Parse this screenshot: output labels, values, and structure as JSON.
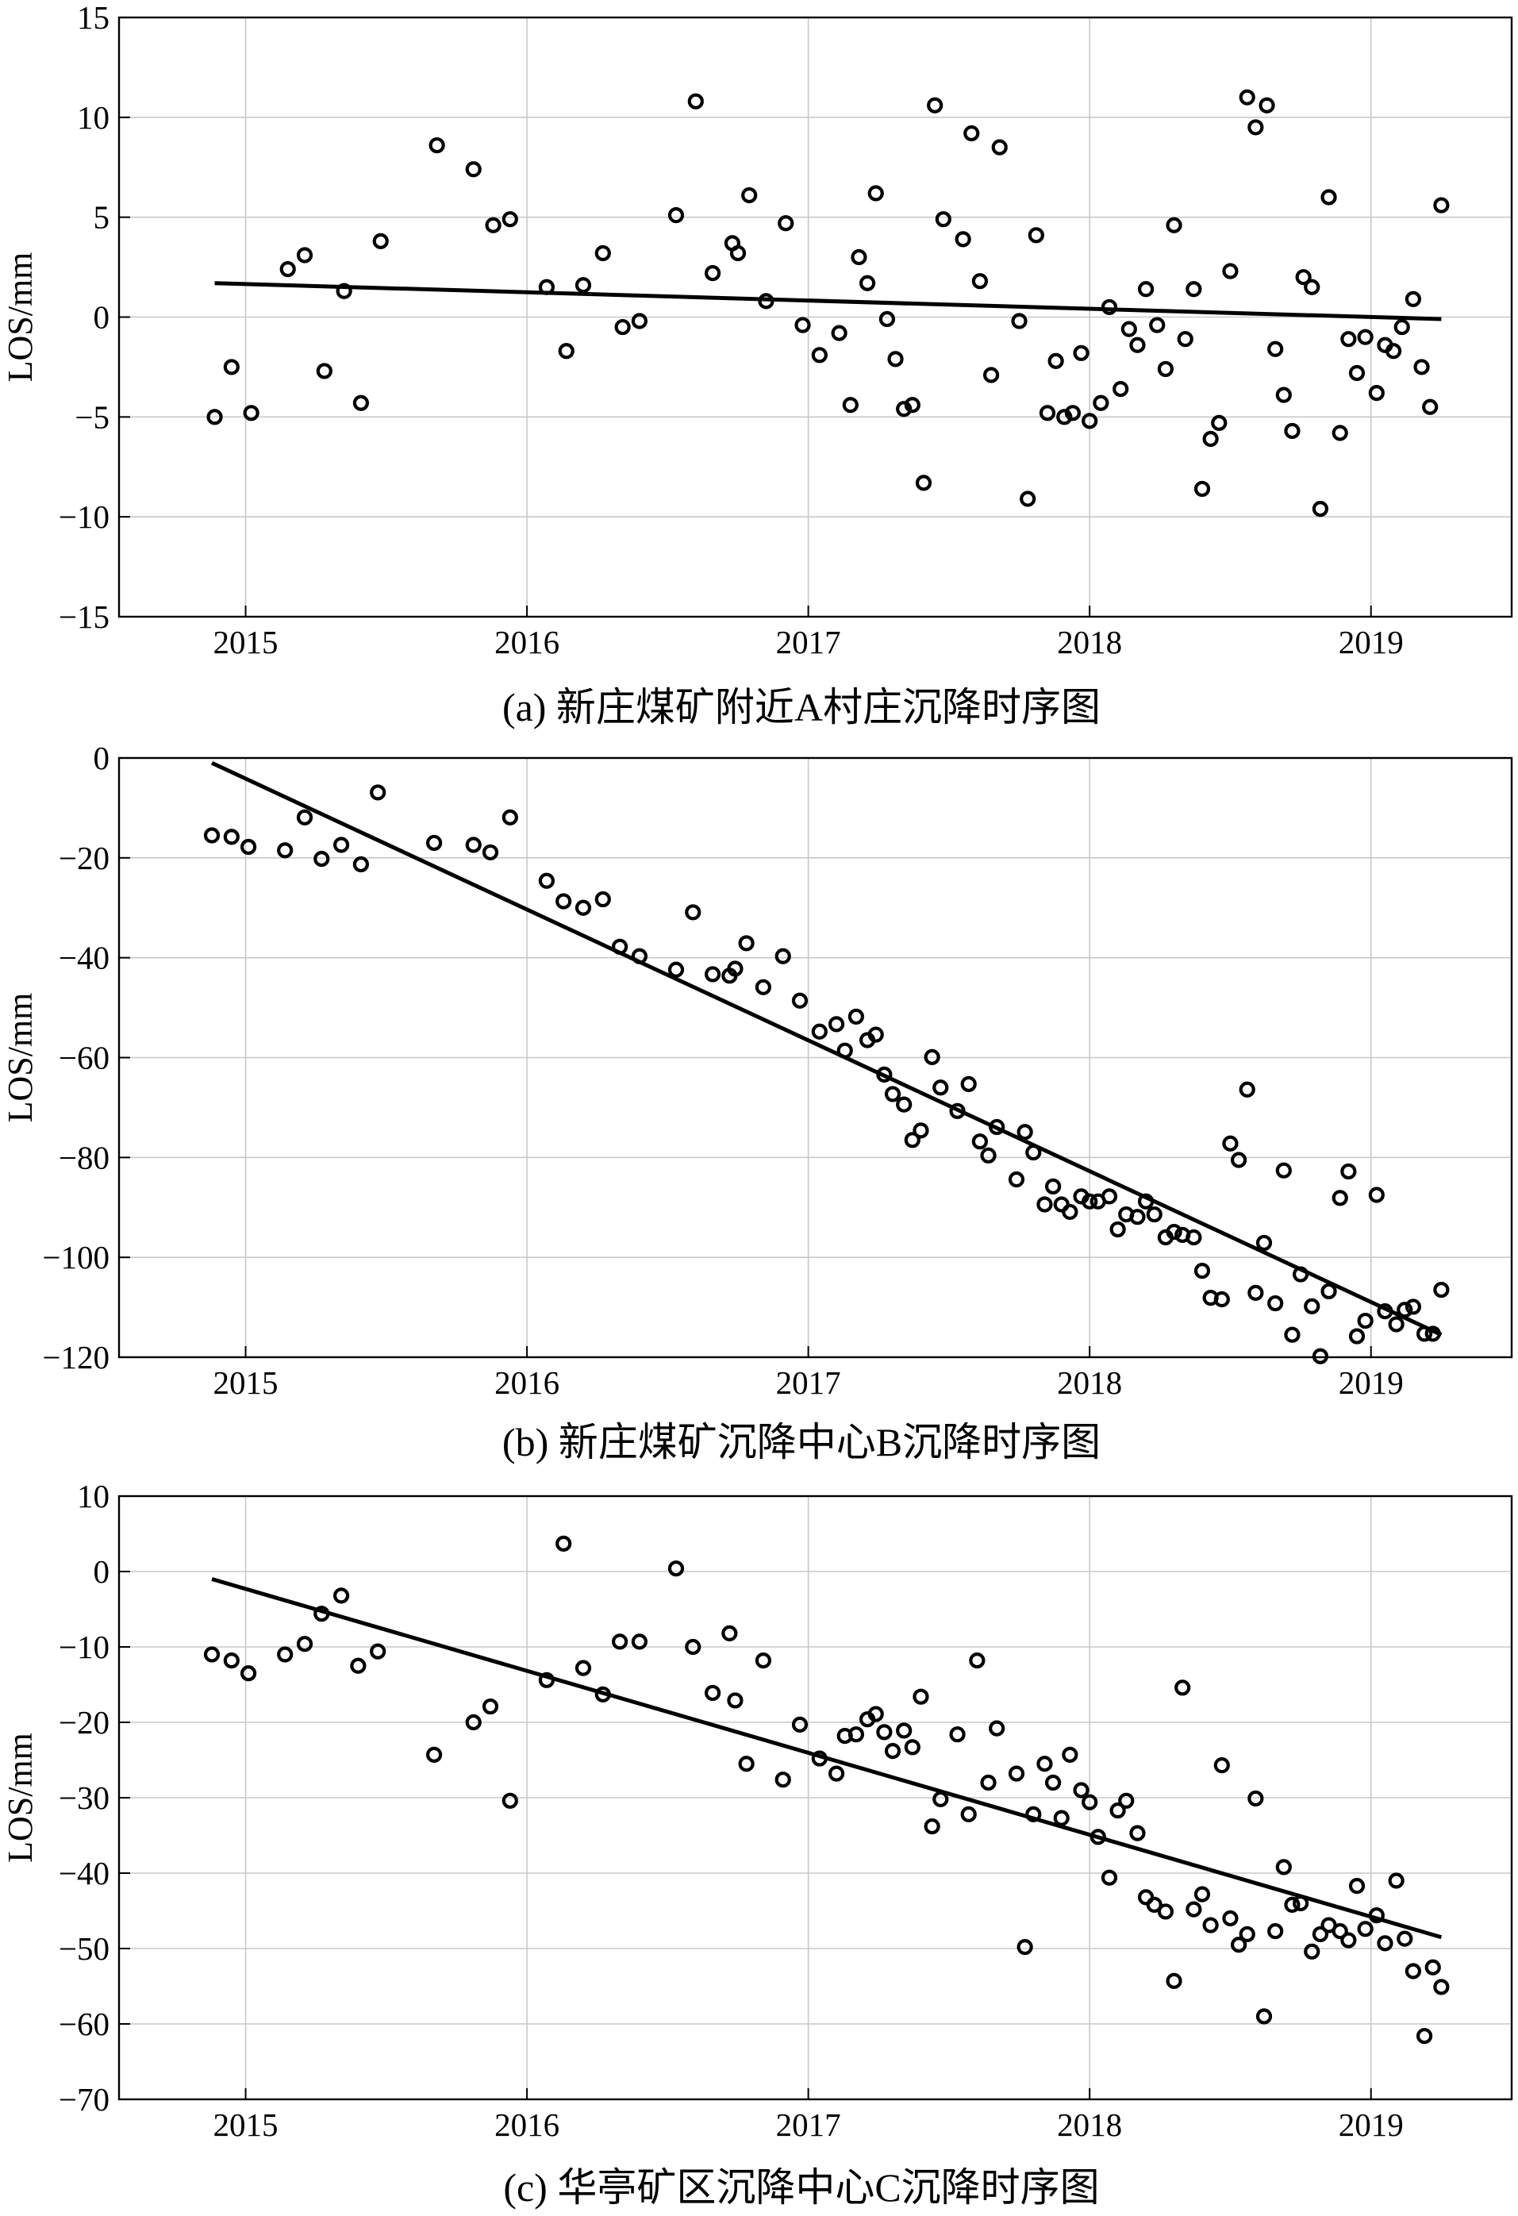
{
  "figure": {
    "captions": [
      "(a) 新庄煤矿附近A村庄沉降时序图",
      "(b) 新庄煤矿沉降中心B沉降时序图",
      "(c) 华亭矿区沉降中心C沉降时序图"
    ]
  },
  "chart_data": [
    {
      "type": "scatter",
      "title": "(a) 新庄煤矿附近A村庄沉降时序图",
      "xlabel": "",
      "ylabel": "LOS/mm",
      "xlim": [
        2014.55,
        2019.5
      ],
      "ylim": [
        -15,
        15
      ],
      "xticks": [
        2015,
        2016,
        2017,
        2018,
        2019
      ],
      "xtick_labels": [
        "2015",
        "2016",
        "2017",
        "2018",
        "2019"
      ],
      "yticks": [
        15,
        10,
        5,
        0,
        -5,
        -10,
        -15
      ],
      "ytick_labels": [
        "15",
        "10",
        "5",
        "0",
        "−5",
        "−10",
        "−15"
      ],
      "grid": true,
      "points": [
        [
          2014.89,
          -5.0
        ],
        [
          2014.95,
          -2.5
        ],
        [
          2015.02,
          -4.8
        ],
        [
          2015.15,
          2.4
        ],
        [
          2015.21,
          3.1
        ],
        [
          2015.28,
          -2.7
        ],
        [
          2015.35,
          1.3
        ],
        [
          2015.41,
          -4.3
        ],
        [
          2015.48,
          3.8
        ],
        [
          2015.68,
          8.6
        ],
        [
          2015.81,
          7.4
        ],
        [
          2015.88,
          4.6
        ],
        [
          2015.94,
          4.9
        ],
        [
          2016.07,
          1.5
        ],
        [
          2016.14,
          -1.7
        ],
        [
          2016.2,
          1.6
        ],
        [
          2016.27,
          3.2
        ],
        [
          2016.34,
          -0.5
        ],
        [
          2016.4,
          -0.2
        ],
        [
          2016.53,
          5.1
        ],
        [
          2016.6,
          10.8
        ],
        [
          2016.66,
          2.2
        ],
        [
          2016.73,
          3.7
        ],
        [
          2016.75,
          3.2
        ],
        [
          2016.79,
          6.1
        ],
        [
          2016.85,
          0.8
        ],
        [
          2016.92,
          4.7
        ],
        [
          2016.98,
          -0.4
        ],
        [
          2017.04,
          -1.9
        ],
        [
          2017.11,
          -0.8
        ],
        [
          2017.15,
          -4.4
        ],
        [
          2017.18,
          3.0
        ],
        [
          2017.21,
          1.7
        ],
        [
          2017.24,
          6.2
        ],
        [
          2017.28,
          -0.1
        ],
        [
          2017.31,
          -2.1
        ],
        [
          2017.34,
          -4.6
        ],
        [
          2017.37,
          -4.4
        ],
        [
          2017.41,
          -8.3
        ],
        [
          2017.45,
          10.6
        ],
        [
          2017.48,
          4.9
        ],
        [
          2017.55,
          3.9
        ],
        [
          2017.58,
          9.2
        ],
        [
          2017.61,
          1.8
        ],
        [
          2017.65,
          -2.9
        ],
        [
          2017.68,
          8.5
        ],
        [
          2017.75,
          -0.2
        ],
        [
          2017.78,
          -9.1
        ],
        [
          2017.81,
          4.1
        ],
        [
          2017.85,
          -4.8
        ],
        [
          2017.88,
          -2.2
        ],
        [
          2017.91,
          -5.0
        ],
        [
          2017.94,
          -4.8
        ],
        [
          2017.97,
          -1.8
        ],
        [
          2018.0,
          -5.2
        ],
        [
          2018.04,
          -4.3
        ],
        [
          2018.07,
          0.5
        ],
        [
          2018.11,
          -3.6
        ],
        [
          2018.14,
          -0.6
        ],
        [
          2018.17,
          -1.4
        ],
        [
          2018.2,
          1.4
        ],
        [
          2018.24,
          -0.4
        ],
        [
          2018.27,
          -2.6
        ],
        [
          2018.3,
          4.6
        ],
        [
          2018.34,
          -1.1
        ],
        [
          2018.37,
          1.4
        ],
        [
          2018.4,
          -8.6
        ],
        [
          2018.43,
          -6.1
        ],
        [
          2018.46,
          -5.3
        ],
        [
          2018.5,
          2.3
        ],
        [
          2018.56,
          11.0
        ],
        [
          2018.59,
          9.5
        ],
        [
          2018.63,
          10.6
        ],
        [
          2018.66,
          -1.6
        ],
        [
          2018.69,
          -3.9
        ],
        [
          2018.72,
          -5.7
        ],
        [
          2018.76,
          2.0
        ],
        [
          2018.79,
          1.5
        ],
        [
          2018.82,
          -9.6
        ],
        [
          2018.85,
          6.0
        ],
        [
          2018.89,
          -5.8
        ],
        [
          2018.92,
          -1.1
        ],
        [
          2018.95,
          -2.8
        ],
        [
          2018.98,
          -1.0
        ],
        [
          2019.02,
          -3.8
        ],
        [
          2019.05,
          -1.4
        ],
        [
          2019.08,
          -1.7
        ],
        [
          2019.11,
          -0.5
        ],
        [
          2019.15,
          0.9
        ],
        [
          2019.18,
          -2.5
        ],
        [
          2019.21,
          -4.5
        ],
        [
          2019.25,
          5.6
        ]
      ],
      "trend_line": [
        [
          2014.89,
          1.7
        ],
        [
          2019.25,
          -0.1
        ]
      ]
    },
    {
      "type": "scatter",
      "title": "(b) 新庄煤矿沉降中心B沉降时序图",
      "xlabel": "",
      "ylabel": "LOS/mm",
      "xlim": [
        2014.55,
        2019.5
      ],
      "ylim": [
        -120,
        0
      ],
      "xticks": [
        2015,
        2016,
        2017,
        2018,
        2019
      ],
      "xtick_labels": [
        "2015",
        "2016",
        "2017",
        "2018",
        "2019"
      ],
      "yticks": [
        0,
        -20,
        -40,
        -60,
        -80,
        -100,
        -120
      ],
      "ytick_labels": [
        "0",
        "−20",
        "−40",
        "−60",
        "−80",
        "−100",
        "−120"
      ],
      "grid": true,
      "points": [
        [
          2014.88,
          -15.5
        ],
        [
          2014.95,
          -15.8
        ],
        [
          2015.01,
          -17.8
        ],
        [
          2015.14,
          -18.5
        ],
        [
          2015.21,
          -11.9
        ],
        [
          2015.27,
          -20.2
        ],
        [
          2015.34,
          -17.4
        ],
        [
          2015.41,
          -21.3
        ],
        [
          2015.47,
          -6.9
        ],
        [
          2015.67,
          -17.0
        ],
        [
          2015.81,
          -17.4
        ],
        [
          2015.87,
          -18.9
        ],
        [
          2015.94,
          -11.9
        ],
        [
          2016.07,
          -24.6
        ],
        [
          2016.13,
          -28.7
        ],
        [
          2016.2,
          -30.0
        ],
        [
          2016.27,
          -28.3
        ],
        [
          2016.33,
          -37.8
        ],
        [
          2016.4,
          -39.7
        ],
        [
          2016.53,
          -42.4
        ],
        [
          2016.59,
          -30.9
        ],
        [
          2016.66,
          -43.3
        ],
        [
          2016.72,
          -43.6
        ],
        [
          2016.74,
          -42.2
        ],
        [
          2016.78,
          -37.1
        ],
        [
          2016.84,
          -45.9
        ],
        [
          2016.91,
          -39.7
        ],
        [
          2016.97,
          -48.6
        ],
        [
          2017.04,
          -54.8
        ],
        [
          2017.1,
          -53.3
        ],
        [
          2017.13,
          -58.6
        ],
        [
          2017.17,
          -51.8
        ],
        [
          2017.21,
          -56.5
        ],
        [
          2017.24,
          -55.4
        ],
        [
          2017.27,
          -63.4
        ],
        [
          2017.3,
          -67.3
        ],
        [
          2017.34,
          -69.4
        ],
        [
          2017.37,
          -76.5
        ],
        [
          2017.4,
          -74.6
        ],
        [
          2017.44,
          -59.9
        ],
        [
          2017.47,
          -66.0
        ],
        [
          2017.53,
          -70.7
        ],
        [
          2017.57,
          -65.3
        ],
        [
          2017.61,
          -76.8
        ],
        [
          2017.64,
          -79.6
        ],
        [
          2017.67,
          -73.9
        ],
        [
          2017.74,
          -84.4
        ],
        [
          2017.77,
          -74.9
        ],
        [
          2017.8,
          -79.0
        ],
        [
          2017.84,
          -89.4
        ],
        [
          2017.87,
          -85.8
        ],
        [
          2017.9,
          -89.4
        ],
        [
          2017.93,
          -90.9
        ],
        [
          2017.97,
          -87.8
        ],
        [
          2018.0,
          -88.8
        ],
        [
          2018.03,
          -88.8
        ],
        [
          2018.07,
          -87.8
        ],
        [
          2018.1,
          -94.4
        ],
        [
          2018.13,
          -91.4
        ],
        [
          2018.17,
          -91.9
        ],
        [
          2018.2,
          -88.8
        ],
        [
          2018.23,
          -91.4
        ],
        [
          2018.27,
          -96.0
        ],
        [
          2018.3,
          -94.9
        ],
        [
          2018.33,
          -95.5
        ],
        [
          2018.37,
          -96.0
        ],
        [
          2018.4,
          -102.7
        ],
        [
          2018.43,
          -108.1
        ],
        [
          2018.47,
          -108.4
        ],
        [
          2018.5,
          -77.2
        ],
        [
          2018.53,
          -80.5
        ],
        [
          2018.56,
          -66.4
        ],
        [
          2018.59,
          -107.1
        ],
        [
          2018.62,
          -97.1
        ],
        [
          2018.66,
          -109.2
        ],
        [
          2018.69,
          -82.6
        ],
        [
          2018.72,
          -115.5
        ],
        [
          2018.75,
          -103.4
        ],
        [
          2018.79,
          -109.8
        ],
        [
          2018.82,
          -119.8
        ],
        [
          2018.85,
          -106.8
        ],
        [
          2018.89,
          -88.1
        ],
        [
          2018.92,
          -82.8
        ],
        [
          2018.95,
          -115.8
        ],
        [
          2018.98,
          -112.7
        ],
        [
          2019.02,
          -87.5
        ],
        [
          2019.05,
          -110.8
        ],
        [
          2019.09,
          -113.4
        ],
        [
          2019.12,
          -110.5
        ],
        [
          2019.15,
          -109.9
        ],
        [
          2019.19,
          -115.3
        ],
        [
          2019.22,
          -115.3
        ],
        [
          2019.25,
          -106.5
        ]
      ],
      "trend_line": [
        [
          2014.88,
          -1.0
        ],
        [
          2019.25,
          -115.5
        ]
      ]
    },
    {
      "type": "scatter",
      "title": "(c) 华亭矿区沉降中心C沉降时序图",
      "xlabel": "",
      "ylabel": "LOS/mm",
      "xlim": [
        2014.55,
        2019.5
      ],
      "ylim": [
        -70,
        10
      ],
      "xticks": [
        2015,
        2016,
        2017,
        2018,
        2019
      ],
      "xtick_labels": [
        "2015",
        "2016",
        "2017",
        "2018",
        "2019"
      ],
      "yticks": [
        10,
        0,
        -10,
        -20,
        -30,
        -40,
        -50,
        -60,
        -70
      ],
      "ytick_labels": [
        "10",
        "0",
        "−10",
        "−20",
        "−30",
        "−40",
        "−50",
        "−60",
        "−70"
      ],
      "grid": true,
      "points": [
        [
          2014.88,
          -11.0
        ],
        [
          2014.95,
          -11.8
        ],
        [
          2015.01,
          -13.5
        ],
        [
          2015.14,
          -11.0
        ],
        [
          2015.21,
          -9.6
        ],
        [
          2015.27,
          -5.6
        ],
        [
          2015.34,
          -3.2
        ],
        [
          2015.4,
          -12.5
        ],
        [
          2015.47,
          -10.6
        ],
        [
          2015.67,
          -24.3
        ],
        [
          2015.81,
          -20.0
        ],
        [
          2015.87,
          -17.9
        ],
        [
          2015.94,
          -30.4
        ],
        [
          2016.07,
          -14.4
        ],
        [
          2016.13,
          3.7
        ],
        [
          2016.2,
          -12.8
        ],
        [
          2016.27,
          -16.3
        ],
        [
          2016.33,
          -9.3
        ],
        [
          2016.4,
          -9.3
        ],
        [
          2016.53,
          0.4
        ],
        [
          2016.59,
          -10.0
        ],
        [
          2016.66,
          -16.1
        ],
        [
          2016.72,
          -8.2
        ],
        [
          2016.74,
          -17.1
        ],
        [
          2016.78,
          -25.5
        ],
        [
          2016.84,
          -11.8
        ],
        [
          2016.91,
          -27.6
        ],
        [
          2016.97,
          -20.3
        ],
        [
          2017.04,
          -24.8
        ],
        [
          2017.1,
          -26.8
        ],
        [
          2017.13,
          -21.8
        ],
        [
          2017.17,
          -21.6
        ],
        [
          2017.21,
          -19.6
        ],
        [
          2017.24,
          -18.9
        ],
        [
          2017.27,
          -21.3
        ],
        [
          2017.3,
          -23.8
        ],
        [
          2017.34,
          -21.1
        ],
        [
          2017.37,
          -23.3
        ],
        [
          2017.4,
          -16.6
        ],
        [
          2017.44,
          -33.8
        ],
        [
          2017.47,
          -30.2
        ],
        [
          2017.53,
          -21.6
        ],
        [
          2017.57,
          -32.2
        ],
        [
          2017.6,
          -11.8
        ],
        [
          2017.64,
          -28.0
        ],
        [
          2017.67,
          -20.8
        ],
        [
          2017.74,
          -26.8
        ],
        [
          2017.77,
          -49.8
        ],
        [
          2017.8,
          -32.2
        ],
        [
          2017.84,
          -25.5
        ],
        [
          2017.87,
          -28.0
        ],
        [
          2017.9,
          -32.7
        ],
        [
          2017.93,
          -24.3
        ],
        [
          2017.97,
          -29.0
        ],
        [
          2018.0,
          -30.6
        ],
        [
          2018.03,
          -35.2
        ],
        [
          2018.07,
          -40.6
        ],
        [
          2018.1,
          -31.7
        ],
        [
          2018.13,
          -30.4
        ],
        [
          2018.17,
          -34.7
        ],
        [
          2018.2,
          -43.2
        ],
        [
          2018.23,
          -44.2
        ],
        [
          2018.27,
          -45.1
        ],
        [
          2018.3,
          -54.3
        ],
        [
          2018.33,
          -15.4
        ],
        [
          2018.37,
          -44.8
        ],
        [
          2018.4,
          -42.8
        ],
        [
          2018.43,
          -46.9
        ],
        [
          2018.47,
          -25.7
        ],
        [
          2018.5,
          -46.0
        ],
        [
          2018.53,
          -49.5
        ],
        [
          2018.56,
          -48.1
        ],
        [
          2018.59,
          -30.1
        ],
        [
          2018.62,
          -59.0
        ],
        [
          2018.66,
          -47.7
        ],
        [
          2018.69,
          -39.2
        ],
        [
          2018.72,
          -44.2
        ],
        [
          2018.75,
          -44.0
        ],
        [
          2018.79,
          -50.4
        ],
        [
          2018.82,
          -48.1
        ],
        [
          2018.85,
          -46.9
        ],
        [
          2018.89,
          -47.7
        ],
        [
          2018.92,
          -48.9
        ],
        [
          2018.95,
          -41.7
        ],
        [
          2018.98,
          -47.4
        ],
        [
          2019.02,
          -45.6
        ],
        [
          2019.05,
          -49.3
        ],
        [
          2019.09,
          -41.0
        ],
        [
          2019.12,
          -48.7
        ],
        [
          2019.15,
          -53.0
        ],
        [
          2019.19,
          -61.6
        ],
        [
          2019.22,
          -52.5
        ],
        [
          2019.25,
          -55.1
        ]
      ],
      "trend_line": [
        [
          2014.88,
          -1.0
        ],
        [
          2019.25,
          -48.5
        ]
      ]
    }
  ]
}
